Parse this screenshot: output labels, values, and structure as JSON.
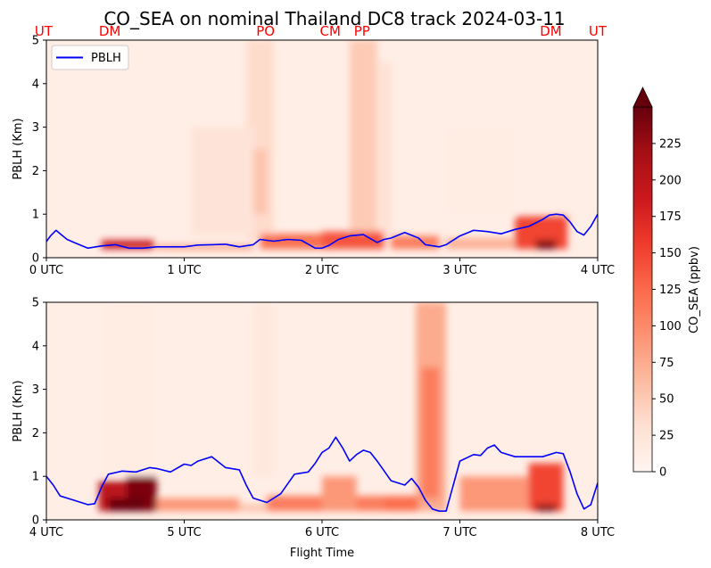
{
  "title": "CO_SEA on nominal Thailand DC8 track 2024-03-11",
  "xlabel": "Flight Time",
  "colorbar": {
    "label": "CO_SEA (ppbv)",
    "ticks": [
      "0",
      "25",
      "50",
      "75",
      "100",
      "125",
      "150",
      "175",
      "200",
      "225"
    ],
    "range": [
      0,
      250
    ],
    "colormap": "Reds",
    "extend": "max"
  },
  "chart_data": [
    {
      "type": "heatmap",
      "panel": "top",
      "ylabel": "PBLH (Km)",
      "xlim": [
        0,
        4
      ],
      "ylim": [
        0,
        5
      ],
      "xticks": [
        {
          "value": 0,
          "label": "0 UTC"
        },
        {
          "value": 1,
          "label": "1 UTC"
        },
        {
          "value": 2,
          "label": "2 UTC"
        },
        {
          "value": 3,
          "label": "3 UTC"
        },
        {
          "value": 4,
          "label": "4 UTC"
        }
      ],
      "yticks": [
        "0",
        "1",
        "2",
        "3",
        "4",
        "5"
      ],
      "legend": {
        "label": "PBLH",
        "position": "top-left",
        "color": "#0000ff"
      },
      "location_labels": [
        {
          "x": -0.02,
          "label": "UT"
        },
        {
          "x": 0.46,
          "label": "DM"
        },
        {
          "x": 1.59,
          "label": "PO"
        },
        {
          "x": 2.06,
          "label": "CM"
        },
        {
          "x": 2.29,
          "label": "PP"
        },
        {
          "x": 3.66,
          "label": "DM"
        },
        {
          "x": 4.0,
          "label": "UT"
        }
      ],
      "series": [
        {
          "name": "PBLH",
          "color": "#0000ff",
          "x": [
            0,
            0.03,
            0.07,
            0.1,
            0.15,
            0.2,
            0.3,
            0.4,
            0.5,
            0.6,
            0.7,
            0.8,
            0.9,
            1.0,
            1.1,
            1.2,
            1.3,
            1.4,
            1.5,
            1.55,
            1.65,
            1.75,
            1.85,
            1.95,
            2.0,
            2.05,
            2.12,
            2.2,
            2.3,
            2.4,
            2.45,
            2.5,
            2.6,
            2.7,
            2.75,
            2.85,
            2.9,
            3.0,
            3.1,
            3.2,
            3.3,
            3.4,
            3.5,
            3.6,
            3.65,
            3.7,
            3.75,
            3.8,
            3.85,
            3.9,
            3.95,
            4.0
          ],
          "y": [
            0.37,
            0.5,
            0.63,
            0.55,
            0.42,
            0.35,
            0.22,
            0.27,
            0.3,
            0.22,
            0.22,
            0.25,
            0.25,
            0.25,
            0.29,
            0.3,
            0.31,
            0.25,
            0.3,
            0.42,
            0.38,
            0.42,
            0.4,
            0.22,
            0.22,
            0.28,
            0.42,
            0.5,
            0.53,
            0.35,
            0.42,
            0.45,
            0.58,
            0.45,
            0.3,
            0.25,
            0.3,
            0.5,
            0.63,
            0.6,
            0.55,
            0.65,
            0.72,
            0.88,
            0.98,
            1.0,
            0.98,
            0.82,
            0.6,
            0.52,
            0.72,
            1.0
          ]
        }
      ],
      "hotspots": [
        {
          "x": [
            0.4,
            0.78
          ],
          "y": [
            0.2,
            0.4
          ],
          "value": 190
        },
        {
          "x": [
            0.8,
            1.5
          ],
          "y": [
            0.2,
            0.28
          ],
          "value": 110
        },
        {
          "x": [
            1.55,
            2.05
          ],
          "y": [
            0.2,
            0.55
          ],
          "value": 120
        },
        {
          "x": [
            2.0,
            2.45
          ],
          "y": [
            0.2,
            0.6
          ],
          "value": 140
        },
        {
          "x": [
            2.5,
            2.85
          ],
          "y": [
            0.2,
            0.5
          ],
          "value": 110
        },
        {
          "x": [
            2.9,
            3.4
          ],
          "y": [
            0.2,
            0.45
          ],
          "value": 70
        },
        {
          "x": [
            3.4,
            3.78
          ],
          "y": [
            0.2,
            0.95
          ],
          "value": 150
        },
        {
          "x": [
            3.55,
            3.7
          ],
          "y": [
            0.2,
            0.4
          ],
          "value": 240
        }
      ],
      "plumes": [
        {
          "x": [
            1.45,
            1.65
          ],
          "y": [
            0.4,
            5.0
          ],
          "value": 35
        },
        {
          "x": [
            1.5,
            1.6
          ],
          "y": [
            1.0,
            2.5
          ],
          "value": 55
        },
        {
          "x": [
            2.2,
            2.4
          ],
          "y": [
            0.5,
            5.0
          ],
          "value": 50
        },
        {
          "x": [
            2.42,
            2.5
          ],
          "y": [
            0.5,
            4.5
          ],
          "value": 30
        },
        {
          "x": [
            1.05,
            1.5
          ],
          "y": [
            0.5,
            3.0
          ],
          "value": 25
        },
        {
          "x": [
            2.9,
            3.4
          ],
          "y": [
            1.0,
            3.0
          ],
          "value": 12
        }
      ]
    },
    {
      "type": "heatmap",
      "panel": "bottom",
      "ylabel": "PBLH (Km)",
      "xlim": [
        4,
        8
      ],
      "ylim": [
        0,
        5
      ],
      "xticks": [
        {
          "value": 4,
          "label": "4 UTC"
        },
        {
          "value": 5,
          "label": "5 UTC"
        },
        {
          "value": 6,
          "label": "6 UTC"
        },
        {
          "value": 7,
          "label": "7 UTC"
        },
        {
          "value": 8,
          "label": "8 UTC"
        }
      ],
      "yticks": [
        "0",
        "1",
        "2",
        "3",
        "4",
        "5"
      ],
      "series": [
        {
          "name": "PBLH",
          "color": "#0000ff",
          "x": [
            4.0,
            4.05,
            4.1,
            4.2,
            4.3,
            4.35,
            4.4,
            4.45,
            4.55,
            4.65,
            4.75,
            4.8,
            4.9,
            5.0,
            5.05,
            5.1,
            5.2,
            5.3,
            5.4,
            5.45,
            5.5,
            5.6,
            5.7,
            5.8,
            5.9,
            5.95,
            6.0,
            6.05,
            6.1,
            6.15,
            6.2,
            6.25,
            6.3,
            6.35,
            6.4,
            6.5,
            6.6,
            6.65,
            6.7,
            6.75,
            6.8,
            6.85,
            6.9,
            7.0,
            7.1,
            7.15,
            7.2,
            7.25,
            7.3,
            7.4,
            7.5,
            7.6,
            7.65,
            7.7,
            7.75,
            7.8,
            7.85,
            7.9,
            7.95,
            8.0
          ],
          "y": [
            1.0,
            0.8,
            0.55,
            0.45,
            0.35,
            0.37,
            0.75,
            1.05,
            1.12,
            1.1,
            1.2,
            1.18,
            1.1,
            1.28,
            1.25,
            1.35,
            1.45,
            1.2,
            1.15,
            0.8,
            0.5,
            0.4,
            0.6,
            1.05,
            1.1,
            1.3,
            1.55,
            1.65,
            1.9,
            1.65,
            1.35,
            1.5,
            1.6,
            1.55,
            1.35,
            0.9,
            0.8,
            0.95,
            0.75,
            0.45,
            0.25,
            0.2,
            0.2,
            1.35,
            1.5,
            1.48,
            1.65,
            1.72,
            1.55,
            1.45,
            1.45,
            1.45,
            1.5,
            1.55,
            1.52,
            1.1,
            0.6,
            0.25,
            0.35,
            0.85
          ]
        }
      ],
      "hotspots": [
        {
          "x": [
            4.38,
            4.58
          ],
          "y": [
            0.2,
            0.9
          ],
          "value": 200
        },
        {
          "x": [
            4.58,
            4.8
          ],
          "y": [
            0.2,
            1.0
          ],
          "value": 240
        },
        {
          "x": [
            4.45,
            4.7
          ],
          "y": [
            0.2,
            0.5
          ],
          "value": 250
        },
        {
          "x": [
            4.8,
            5.4
          ],
          "y": [
            0.2,
            0.5
          ],
          "value": 90
        },
        {
          "x": [
            5.4,
            5.6
          ],
          "y": [
            0.2,
            0.35
          ],
          "value": 60
        },
        {
          "x": [
            5.6,
            6.45
          ],
          "y": [
            0.2,
            0.55
          ],
          "value": 110
        },
        {
          "x": [
            6.0,
            6.25
          ],
          "y": [
            0.2,
            1.0
          ],
          "value": 90
        },
        {
          "x": [
            6.45,
            6.7
          ],
          "y": [
            0.2,
            0.55
          ],
          "value": 120
        },
        {
          "x": [
            7.0,
            7.5
          ],
          "y": [
            0.2,
            1.0
          ],
          "value": 90
        },
        {
          "x": [
            7.5,
            7.75
          ],
          "y": [
            0.2,
            1.3
          ],
          "value": 150
        },
        {
          "x": [
            7.55,
            7.7
          ],
          "y": [
            0.2,
            0.35
          ],
          "value": 240
        }
      ],
      "plumes": [
        {
          "x": [
            6.68,
            6.9
          ],
          "y": [
            0.2,
            5.0
          ],
          "value": 75
        },
        {
          "x": [
            6.72,
            6.85
          ],
          "y": [
            0.5,
            3.5
          ],
          "value": 110
        },
        {
          "x": [
            5.5,
            5.65
          ],
          "y": [
            1.0,
            5.0
          ],
          "value": 20
        },
        {
          "x": [
            4.4,
            4.8
          ],
          "y": [
            1.0,
            5.0
          ],
          "value": 12
        }
      ]
    }
  ]
}
